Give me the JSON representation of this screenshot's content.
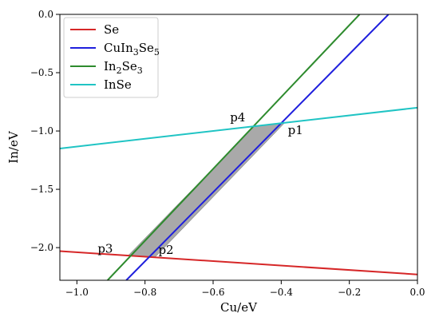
{
  "chart_data": {
    "type": "line",
    "title": "",
    "xlabel": "Cu/eV",
    "ylabel": "In/eV",
    "xlim": [
      -1.05,
      0.0
    ],
    "ylim": [
      -2.28,
      0.0
    ],
    "xticks": [
      -1.0,
      -0.8,
      -0.6,
      -0.4,
      -0.2,
      0.0
    ],
    "xtick_labels": [
      "−1.0",
      "−0.8",
      "−0.6",
      "−0.4",
      "−0.2",
      "0.0"
    ],
    "yticks": [
      -2.0,
      -1.5,
      -1.0,
      -0.5,
      0.0
    ],
    "ytick_labels": [
      "−2.0",
      "−1.5",
      "−1.0",
      "−0.5",
      "0.0"
    ],
    "grid": false,
    "legend_position": "top-left",
    "series": [
      {
        "name": "Se",
        "legend_parts": [
          [
            "Se",
            ""
          ]
        ],
        "color": "#d62728",
        "points": [
          [
            -1.05,
            -2.03
          ],
          [
            0.0,
            -2.23
          ]
        ]
      },
      {
        "name": "CuIn3Se5",
        "legend_parts": [
          [
            "CuIn",
            ""
          ],
          [
            "3",
            "sub"
          ],
          [
            "Se",
            ""
          ],
          [
            "5",
            "sub"
          ]
        ],
        "color": "#1f1fdd",
        "points": [
          [
            -0.855,
            -2.28
          ],
          [
            -0.085,
            0.0
          ]
        ]
      },
      {
        "name": "In2Se3",
        "legend_parts": [
          [
            "In",
            ""
          ],
          [
            "2",
            "sub"
          ],
          [
            "Se",
            ""
          ],
          [
            "3",
            "sub"
          ]
        ],
        "color": "#2e8b2e",
        "points": [
          [
            -0.91,
            -2.28
          ],
          [
            -0.17,
            0.0
          ]
        ]
      },
      {
        "name": "InSe",
        "legend_parts": [
          [
            "InSe",
            ""
          ]
        ],
        "color": "#20c4c4",
        "points": [
          [
            -1.05,
            -1.15
          ],
          [
            0.0,
            -0.8
          ]
        ]
      }
    ],
    "shaded_region": {
      "color": "#9a9a9a",
      "vertices": [
        [
          -0.39,
          -0.93
        ],
        [
          -0.48,
          -0.96
        ],
        [
          -0.85,
          -2.07
        ],
        [
          -0.77,
          -2.08
        ]
      ]
    },
    "annotations": [
      {
        "text": "p1",
        "x": -0.39,
        "y": -0.93
      },
      {
        "text": "p2",
        "x": -0.77,
        "y": -2.08
      },
      {
        "text": "p3",
        "x": -0.85,
        "y": -2.07
      },
      {
        "text": "p4",
        "x": -0.48,
        "y": -0.96
      }
    ]
  }
}
